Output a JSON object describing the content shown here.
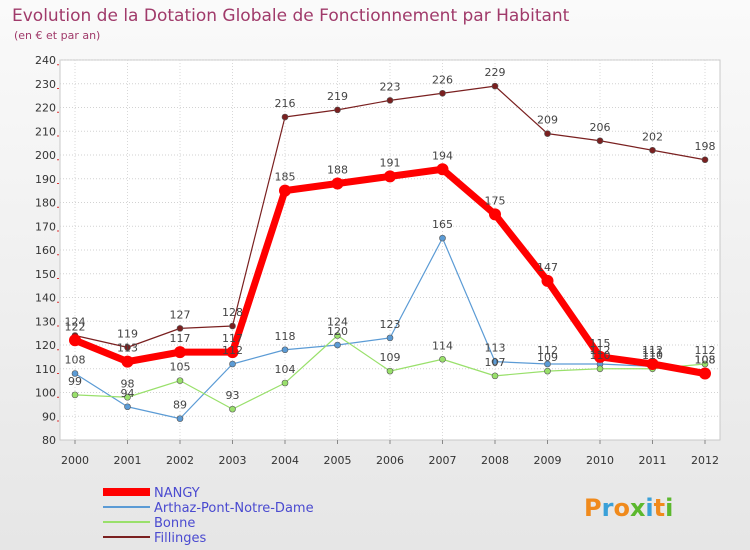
{
  "chart_data": {
    "type": "line",
    "title": "Evolution de la Dotation Globale de Fonctionnement par Habitant",
    "subtitle": "(en € et par an)",
    "xlabel": "",
    "ylabel": "",
    "categories": [
      "2000",
      "2001",
      "2002",
      "2003",
      "2004",
      "2005",
      "2006",
      "2007",
      "2008",
      "2009",
      "2010",
      "2011",
      "2012"
    ],
    "ylim": [
      80,
      240
    ],
    "ystep": 10,
    "grid": true,
    "legend_position": "bottom-left",
    "series": [
      {
        "name": "NANGY",
        "color": "#ff0000",
        "width": 7,
        "dot": 6,
        "values": [
          122,
          113,
          117,
          117,
          185,
          188,
          191,
          194,
          175,
          147,
          115,
          112,
          108
        ],
        "labels": [
          "122",
          "113",
          "117",
          "117",
          "185",
          "188",
          "191",
          "194",
          "175",
          "147",
          "115",
          "112",
          "108"
        ]
      },
      {
        "name": "Arthaz-Pont-Notre-Dame",
        "color": "#5b9bd5",
        "width": 1.2,
        "dot": 3,
        "values": [
          108,
          94,
          89,
          112,
          118,
          120,
          123,
          165,
          113,
          112,
          112,
          111,
          108
        ],
        "labels": [
          "108",
          "94",
          "89",
          "112",
          "118",
          "120",
          "123",
          "165",
          "113",
          "112",
          "112",
          "111",
          "108"
        ]
      },
      {
        "name": "Bonne",
        "color": "#99e06b",
        "width": 1.2,
        "dot": 3,
        "values": [
          99,
          98,
          105,
          93,
          104,
          124,
          109,
          114,
          107,
          109,
          110,
          110,
          112
        ],
        "labels": [
          "99",
          "98",
          "105",
          "93",
          "104",
          "124",
          "109",
          "114",
          "107",
          "109",
          "110",
          "110",
          "112"
        ]
      },
      {
        "name": "Fillinges",
        "color": "#7a2020",
        "width": 1.2,
        "dot": 3,
        "values": [
          124,
          119,
          127,
          128,
          216,
          219,
          223,
          226,
          229,
          209,
          206,
          202,
          198
        ],
        "labels": [
          "124",
          "119",
          "127",
          "128",
          "216",
          "219",
          "223",
          "226",
          "229",
          "209",
          "206",
          "202",
          "198"
        ]
      }
    ]
  },
  "branding": {
    "logo_text": "Proxiti",
    "logo_colors": [
      "#f08a1c",
      "#3aa0d8",
      "#f08a1c",
      "#5cb82e",
      "#3aa0d8",
      "#f08a1c",
      "#5cb82e"
    ]
  }
}
